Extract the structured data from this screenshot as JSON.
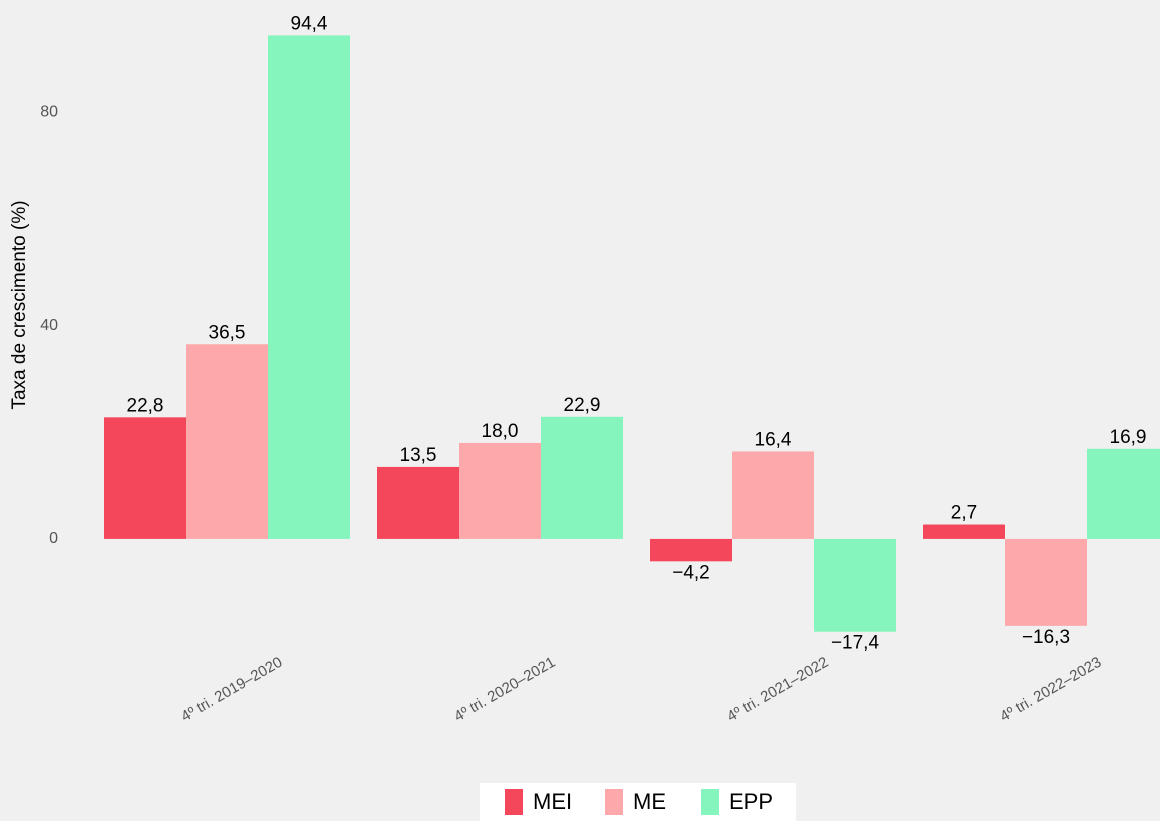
{
  "chart_data": {
    "type": "bar",
    "y_label": "Taxa de crescimento (%)",
    "categories": [
      "4º tri. 2019–2020",
      "4º tri. 2020–2021",
      "4º tri. 2021–2022",
      "4º tri. 2022–2023"
    ],
    "series": [
      {
        "name": "MEI",
        "color": "#f5475c",
        "values": [
          22.8,
          13.5,
          -4.2,
          2.7
        ],
        "value_labels": [
          "22,8",
          "13,5",
          "−4,2",
          "2,7"
        ]
      },
      {
        "name": "ME",
        "color": "#fda9ab",
        "values": [
          36.5,
          18.0,
          16.4,
          -16.3
        ],
        "value_labels": [
          "36,5",
          "18,0",
          "16,4",
          "−16,3"
        ]
      },
      {
        "name": "EPP",
        "color": "#86f5bd",
        "values": [
          94.4,
          22.9,
          -17.4,
          16.9
        ],
        "value_labels": [
          "94,4",
          "22,9",
          "−17,4",
          "16,9"
        ]
      }
    ],
    "ylim": [
      -21.2,
      98.6
    ],
    "yticks": [
      0,
      40,
      80
    ],
    "grid": false,
    "legend": "bottom"
  }
}
